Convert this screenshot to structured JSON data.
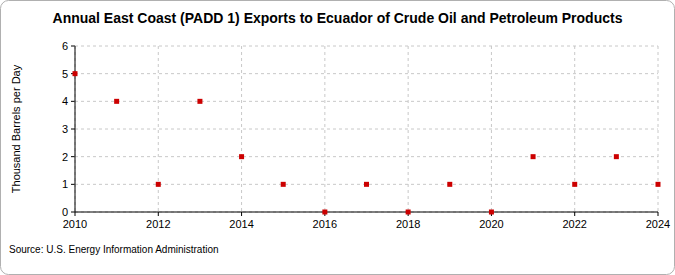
{
  "chart_data": {
    "type": "scatter",
    "title": "Annual East Coast (PADD 1) Exports to Ecuador of Crude Oil and Petroleum Products",
    "y_label": "Thousand Barrels per Day",
    "source": "Source: U.S. Energy Information Administration",
    "x": [
      2010,
      2011,
      2012,
      2013,
      2014,
      2015,
      2016,
      2017,
      2018,
      2019,
      2020,
      2021,
      2022,
      2023,
      2024
    ],
    "values": [
      5,
      4,
      1,
      4,
      2,
      1,
      0,
      1,
      0,
      1,
      0,
      2,
      1,
      2,
      1
    ],
    "color": "#cc0000",
    "marker": "square",
    "xlim": [
      2010,
      2024
    ],
    "xticks": [
      2010,
      2012,
      2014,
      2016,
      2018,
      2020,
      2022,
      2024
    ],
    "ylim": [
      0,
      6
    ],
    "yticks": [
      0,
      1,
      2,
      3,
      4,
      5,
      6
    ],
    "grid": true
  }
}
